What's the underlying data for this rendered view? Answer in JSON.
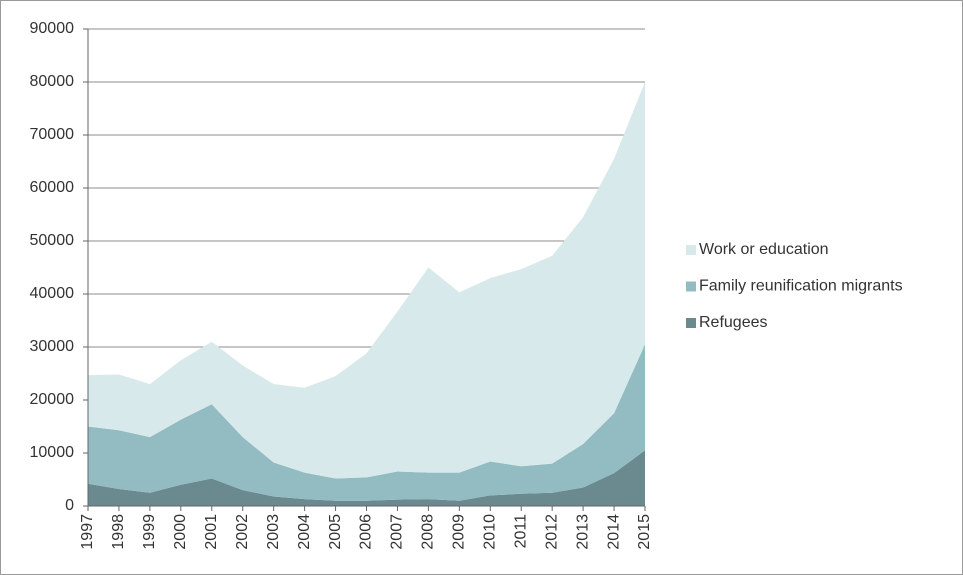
{
  "chart_data": {
    "type": "stacked_area",
    "categories": [
      "1997",
      "1998",
      "1999",
      "2000",
      "2001",
      "2002",
      "2003",
      "2004",
      "2005",
      "2006",
      "2007",
      "2008",
      "2009",
      "2010",
      "2011",
      "2012",
      "2013",
      "2014",
      "2015"
    ],
    "series": [
      {
        "name": "Refugees",
        "color": "#6a8a8f",
        "values": [
          4200,
          3200,
          2500,
          4000,
          5200,
          3000,
          1800,
          1300,
          1000,
          1000,
          1200,
          1300,
          1000,
          2000,
          2300,
          2500,
          3500,
          6200,
          10500
        ]
      },
      {
        "name": "Family reunification migrants",
        "color": "#92bcc2",
        "values": [
          10800,
          11100,
          10500,
          12300,
          14000,
          10000,
          6400,
          5000,
          4200,
          4400,
          5300,
          5000,
          5300,
          6400,
          5200,
          5500,
          8200,
          11300,
          20000
        ]
      },
      {
        "name": "Work or education",
        "color": "#d7e9ea",
        "values": [
          9700,
          10500,
          10000,
          11200,
          11800,
          13500,
          14800,
          16000,
          19300,
          23400,
          30200,
          38700,
          34000,
          34600,
          37200,
          39200,
          42800,
          48000,
          49500
        ]
      }
    ],
    "ylim": [
      0,
      90000
    ],
    "yticks": [
      0,
      10000,
      20000,
      30000,
      40000,
      50000,
      60000,
      70000,
      80000,
      90000
    ],
    "grid": true,
    "legend": "right"
  }
}
